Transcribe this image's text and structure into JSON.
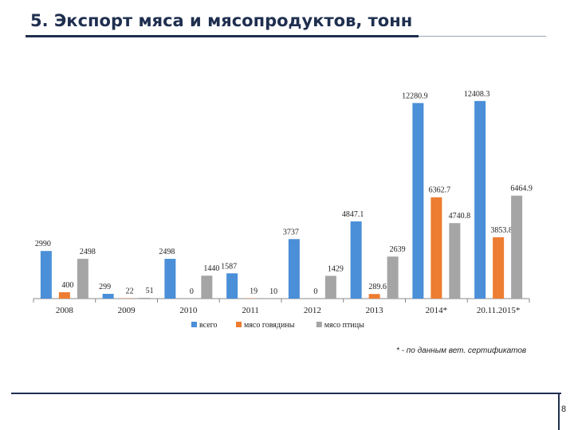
{
  "title": "5. Экспорт мяса и мясопродуктов, тонн",
  "footnote": "* - по данным вет. сертификатов",
  "page_number": "8",
  "chart_data": {
    "type": "bar",
    "title": "",
    "xlabel": "",
    "ylabel": "",
    "ylim": [
      0,
      13500
    ],
    "grid": false,
    "legend_position": "bottom",
    "categories": [
      "2008",
      "2009",
      "2010",
      "2011",
      "2012",
      "2013",
      "2014*",
      "20.11.2015*"
    ],
    "series": [
      {
        "name": "всего",
        "color": "#4a8fd8",
        "values": [
          2990,
          299,
          2498,
          1587,
          3737,
          4847.1,
          12280.9,
          12408.3
        ],
        "labels": [
          "2990",
          "299",
          "2498",
          "1587",
          "3737",
          "4847.1",
          "12280.9",
          "12408.3"
        ]
      },
      {
        "name": "мясо говядины",
        "color": "#ed7d31",
        "values": [
          400,
          22,
          0,
          19,
          0,
          289.6,
          6362.7,
          3853.8
        ],
        "labels": [
          "400",
          "22",
          "0",
          "19",
          "0",
          "289.6",
          "6362.7",
          "3853.8"
        ]
      },
      {
        "name": "мясо птицы",
        "color": "#a5a5a5",
        "values": [
          2498,
          51,
          1440,
          10,
          1429,
          2639,
          4740.8,
          6464.9
        ],
        "labels": [
          "2498",
          "51",
          "1440",
          "10",
          "1429",
          "2639",
          "4740.8",
          "6464.9"
        ]
      }
    ]
  }
}
